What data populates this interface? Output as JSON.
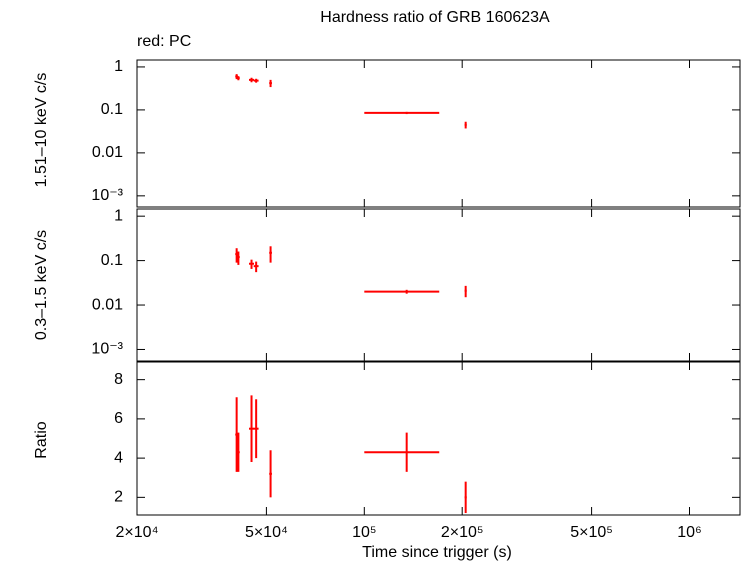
{
  "chart_data": [
    {
      "type": "errorbar",
      "title": "Hardness ratio of GRB 160623A",
      "annotation": "red: PC",
      "ylabel": "1.51–10 keV c/s",
      "log_x": true,
      "log_y": true,
      "xlim": [
        20000,
        1430000
      ],
      "ylim": [
        0.00055,
        1.45
      ],
      "yticks": [
        1,
        0.1,
        0.01,
        {
          "value": 0.001,
          "label": "10⁻³"
        }
      ],
      "series": [
        {
          "color": "#ff0000",
          "x": [
            40500,
            41000,
            45000,
            46500,
            51500,
            135000,
            205000
          ],
          "xerr": [
            400,
            400,
            800,
            800,
            500,
            35000,
            1500
          ],
          "values": [
            0.6,
            0.55,
            0.5,
            0.48,
            0.42,
            0.085,
            0.045
          ],
          "yerr": [
            0.08,
            0.06,
            0.06,
            0.05,
            0.08,
            0.005,
            0.008
          ]
        }
      ]
    },
    {
      "type": "errorbar",
      "ylabel": "0.3–1.5 keV c/s",
      "log_x": true,
      "log_y": true,
      "xlim": [
        20000,
        1430000
      ],
      "ylim": [
        0.00055,
        1.45
      ],
      "yticks": [
        1,
        0.1,
        0.01,
        {
          "value": 0.001,
          "label": "10⁻³"
        }
      ],
      "series": [
        {
          "color": "#ff0000",
          "x": [
            40500,
            41000,
            45000,
            46500,
            51500,
            135000,
            205000
          ],
          "xerr": [
            400,
            400,
            800,
            800,
            500,
            35000,
            1500
          ],
          "values": [
            0.14,
            0.12,
            0.085,
            0.075,
            0.15,
            0.02,
            0.021
          ],
          "yerr": [
            0.05,
            0.04,
            0.02,
            0.02,
            0.06,
            0.002,
            0.006
          ]
        }
      ]
    },
    {
      "type": "errorbar",
      "ylabel": "Ratio",
      "xlabel": "Time since trigger (s)",
      "log_x": true,
      "log_y": false,
      "xlim": [
        20000,
        1430000
      ],
      "ylim": [
        1.1,
        8.9
      ],
      "xticks": [
        {
          "value": 20000,
          "label": "2×10⁴"
        },
        {
          "value": 50000,
          "label": "5×10⁴"
        },
        {
          "value": 100000,
          "label": "10⁵"
        },
        {
          "value": 200000,
          "label": "2×10⁵"
        },
        {
          "value": 500000,
          "label": "5×10⁵"
        },
        {
          "value": 1000000,
          "label": "10⁶"
        }
      ],
      "yticks": [
        2,
        4,
        6,
        8
      ],
      "series": [
        {
          "color": "#ff0000",
          "x": [
            40500,
            41000,
            45000,
            46500,
            51500,
            135000,
            205000
          ],
          "xerr": [
            400,
            400,
            800,
            800,
            500,
            35000,
            1500
          ],
          "values": [
            5.2,
            4.3,
            5.5,
            5.5,
            3.2,
            4.3,
            2.0
          ],
          "yerr": [
            1.9,
            1.0,
            1.7,
            1.5,
            1.2,
            1.0,
            0.8
          ]
        }
      ]
    }
  ]
}
